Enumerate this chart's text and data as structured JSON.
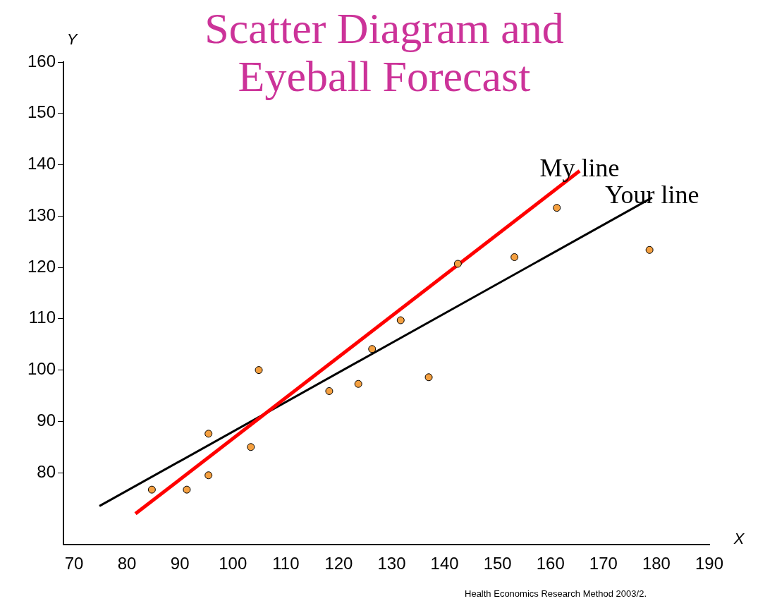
{
  "chart_data": {
    "type": "scatter",
    "title": "Scatter Diagram and Eyeball Forecast",
    "xlabel": "X",
    "ylabel": "Y",
    "xlim": [
      68,
      190
    ],
    "xticks": [
      70,
      80,
      90,
      100,
      110,
      120,
      130,
      140,
      150,
      160,
      170,
      180,
      190
    ],
    "ylim": [
      66,
      160
    ],
    "yticks": [
      80,
      90,
      100,
      110,
      120,
      130,
      140,
      150,
      160
    ],
    "grid": false,
    "legend": false,
    "marker": "circle",
    "series": [
      {
        "color": "#f5a040",
        "x": [
          84.7,
          91.3,
          95.4,
          95.4,
          103.4,
          104.9,
          118.2,
          123.7,
          126.3,
          131.7,
          137.0,
          142.5,
          153.2,
          161.2,
          178.7
        ],
        "values": [
          76.7,
          76.7,
          79.5,
          87.6,
          85.0,
          100.0,
          95.9,
          97.3,
          104.1,
          109.7,
          98.6,
          120.7,
          122.0,
          131.6,
          123.4
        ]
      },
      {
        "type": "line",
        "name": "My line",
        "color": "#ff0000",
        "marker": "none",
        "x": [
          81.6,
          165.5
        ],
        "values": [
          72.0,
          138.8
        ]
      },
      {
        "type": "line",
        "name": "Your line",
        "color": "#000000",
        "marker": "none",
        "x": [
          74.8,
          179.2
        ],
        "values": [
          73.5,
          133.6
        ]
      }
    ],
    "annotations": [
      "Health Economics Research Method 2003/2."
    ]
  }
}
